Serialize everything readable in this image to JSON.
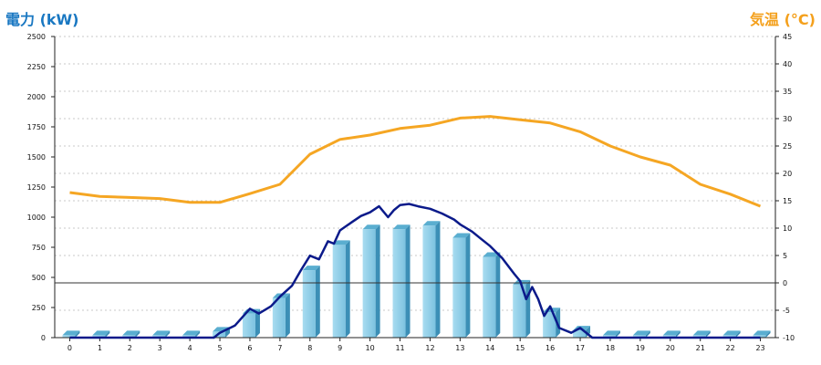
{
  "chart_data": {
    "type": "bar",
    "title_left": "電力 (kW)",
    "title_right": "気温 (°C)",
    "left_axis": {
      "min": 0,
      "max": 2500,
      "ticks": [
        0,
        250,
        500,
        750,
        1000,
        1250,
        1500,
        1750,
        2000,
        2250,
        2500
      ]
    },
    "right_axis": {
      "min": -10,
      "max": 45,
      "ticks": [
        -10,
        -5,
        0,
        5,
        10,
        15,
        20,
        25,
        30,
        35,
        40,
        45
      ]
    },
    "categories": [
      "0",
      "1",
      "2",
      "3",
      "4",
      "5",
      "6",
      "7",
      "8",
      "9",
      "10",
      "11",
      "12",
      "13",
      "14",
      "15",
      "16",
      "17",
      "18",
      "19",
      "20",
      "21",
      "22",
      "23"
    ],
    "series": [
      {
        "kind": "bar",
        "color": "#8ecfe8",
        "values": [
          20,
          20,
          20,
          20,
          20,
          50,
          200,
          330,
          560,
          770,
          900,
          900,
          930,
          830,
          670,
          440,
          210,
          60,
          20,
          20,
          20,
          20,
          20,
          20
        ]
      },
      {
        "kind": "line",
        "axis": "right",
        "color": "#f5a623",
        "values": [
          16.5,
          15.8,
          15.6,
          15.4,
          14.7,
          14.7,
          16.3,
          18.0,
          23.5,
          26.2,
          27.0,
          28.2,
          28.8,
          30.1,
          30.4,
          29.8,
          29.2,
          27.6,
          25.0,
          23.0,
          21.5,
          18.0,
          16.2,
          14.0
        ]
      },
      {
        "kind": "line",
        "color": "#0b1a8a",
        "points": [
          [
            0,
            0
          ],
          [
            1,
            0
          ],
          [
            2,
            0
          ],
          [
            3,
            0
          ],
          [
            4,
            0
          ],
          [
            4.8,
            0
          ],
          [
            5,
            40
          ],
          [
            5.5,
            100
          ],
          [
            6,
            240
          ],
          [
            6.3,
            200
          ],
          [
            6.7,
            260
          ],
          [
            7,
            340
          ],
          [
            7.4,
            430
          ],
          [
            7.7,
            560
          ],
          [
            8,
            680
          ],
          [
            8.3,
            650
          ],
          [
            8.6,
            800
          ],
          [
            8.8,
            780
          ],
          [
            9,
            890
          ],
          [
            9.4,
            960
          ],
          [
            9.7,
            1010
          ],
          [
            10,
            1040
          ],
          [
            10.3,
            1090
          ],
          [
            10.6,
            1000
          ],
          [
            10.8,
            1060
          ],
          [
            11,
            1100
          ],
          [
            11.3,
            1110
          ],
          [
            11.6,
            1090
          ],
          [
            12,
            1070
          ],
          [
            12.4,
            1030
          ],
          [
            12.8,
            980
          ],
          [
            13,
            940
          ],
          [
            13.4,
            880
          ],
          [
            13.7,
            820
          ],
          [
            14,
            760
          ],
          [
            14.4,
            660
          ],
          [
            14.8,
            530
          ],
          [
            15,
            470
          ],
          [
            15.2,
            320
          ],
          [
            15.4,
            420
          ],
          [
            15.6,
            320
          ],
          [
            15.8,
            180
          ],
          [
            16,
            260
          ],
          [
            16.3,
            80
          ],
          [
            16.7,
            40
          ],
          [
            17,
            80
          ],
          [
            17.4,
            0
          ],
          [
            18,
            0
          ],
          [
            19,
            0
          ],
          [
            20,
            0
          ],
          [
            21,
            0
          ],
          [
            22,
            0
          ],
          [
            23,
            0
          ]
        ]
      }
    ],
    "grid": true,
    "legend": "none"
  }
}
